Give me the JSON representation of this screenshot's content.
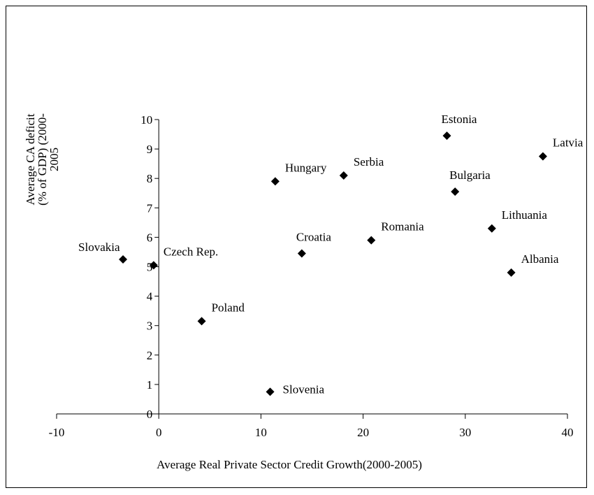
{
  "chart_data": {
    "type": "scatter",
    "title": "",
    "xlabel": "Average Real Private Sector Credit Growth(2000-2005)",
    "ylabel_lines": [
      "Average CA deficit",
      "(% of GDP)  (2000-",
      "2005"
    ],
    "xlim": [
      -10,
      40
    ],
    "ylim": [
      0,
      10
    ],
    "xticks": [
      -10,
      0,
      10,
      20,
      30,
      40
    ],
    "yticks": [
      0,
      1,
      2,
      3,
      4,
      5,
      6,
      7,
      8,
      9,
      10
    ],
    "grid": false,
    "marker": "diamond",
    "marker_color": "#000000",
    "points": [
      {
        "label": "Slovakia",
        "x": -3.5,
        "y": 5.25,
        "label_pos": "upper-left"
      },
      {
        "label": "Czech Rep.",
        "x": -0.5,
        "y": 5.05,
        "label_pos": "upper-right"
      },
      {
        "label": "Poland",
        "x": 4.2,
        "y": 3.15,
        "label_pos": "upper-right"
      },
      {
        "label": "Slovenia",
        "x": 10.9,
        "y": 0.75,
        "label_pos": "right"
      },
      {
        "label": "Hungary",
        "x": 11.4,
        "y": 7.9,
        "label_pos": "upper-right"
      },
      {
        "label": "Croatia",
        "x": 14.0,
        "y": 5.45,
        "label_pos": "above"
      },
      {
        "label": "Serbia",
        "x": 18.1,
        "y": 8.1,
        "label_pos": "upper-right"
      },
      {
        "label": "Romania",
        "x": 20.8,
        "y": 5.9,
        "label_pos": "upper-right"
      },
      {
        "label": "Estonia",
        "x": 28.2,
        "y": 9.45,
        "label_pos": "above"
      },
      {
        "label": "Bulgaria",
        "x": 29.0,
        "y": 7.55,
        "label_pos": "above"
      },
      {
        "label": "Lithuania",
        "x": 32.6,
        "y": 6.3,
        "label_pos": "upper-right"
      },
      {
        "label": "Albania",
        "x": 34.5,
        "y": 4.8,
        "label_pos": "upper-right"
      },
      {
        "label": "Latvia",
        "x": 37.6,
        "y": 8.75,
        "label_pos": "upper-right"
      }
    ]
  }
}
